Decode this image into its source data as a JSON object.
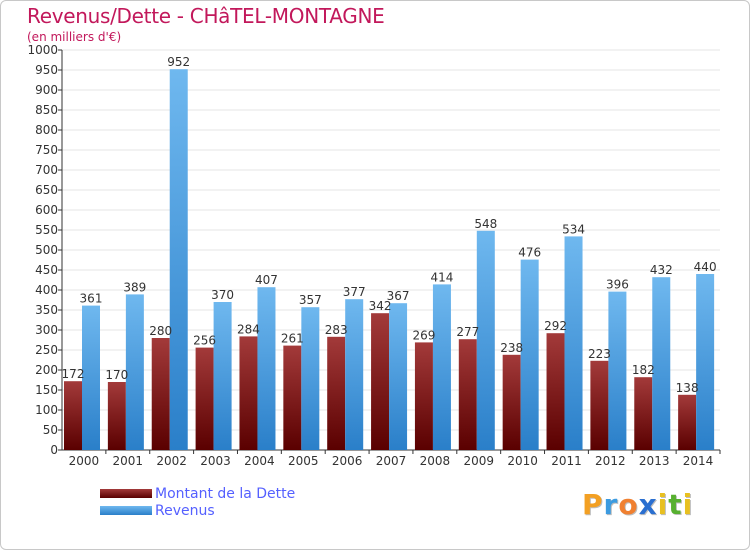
{
  "header": {
    "title": "Revenus/Dette - CHâTEL-MONTAGNE",
    "subtitle": "(en milliers d'€)"
  },
  "colors": {
    "debt_dark": "#5a0000",
    "debt_light": "#a33a3a",
    "revenue_dark": "#2a7fc9",
    "revenue_light": "#6fb8ef",
    "grid": "#e6e6e6",
    "title": "#c2185b"
  },
  "chart_data": {
    "type": "bar",
    "title": "Revenus/Dette - CHâTEL-MONTAGNE",
    "ylabel": "(en milliers d'€)",
    "xlabel": "",
    "ylim": [
      0,
      1000
    ],
    "ytick_step": 50,
    "grid": true,
    "legend_position": "bottom-left",
    "categories": [
      "2000",
      "2001",
      "2002",
      "2003",
      "2004",
      "2005",
      "2006",
      "2007",
      "2008",
      "2009",
      "2010",
      "2011",
      "2012",
      "2013",
      "2014"
    ],
    "series": [
      {
        "name": "Montant de la Dette",
        "values": [
          172,
          170,
          280,
          256,
          284,
          261,
          283,
          342,
          269,
          277,
          238,
          292,
          223,
          182,
          138
        ]
      },
      {
        "name": "Revenus",
        "values": [
          361,
          389,
          952,
          370,
          407,
          357,
          377,
          367,
          414,
          548,
          476,
          534,
          396,
          432,
          440
        ]
      }
    ]
  },
  "legend": {
    "items": [
      {
        "label": "Montant de la Dette"
      },
      {
        "label": "Revenus"
      }
    ]
  },
  "logo": {
    "letters": [
      "P",
      "r",
      "o",
      "x",
      "i",
      "t",
      "i"
    ],
    "letter_colors": [
      "#f3a023",
      "#3c9be0",
      "#f08030",
      "#2a6fd0",
      "#e8c020",
      "#57b030",
      "#e8c020"
    ]
  }
}
